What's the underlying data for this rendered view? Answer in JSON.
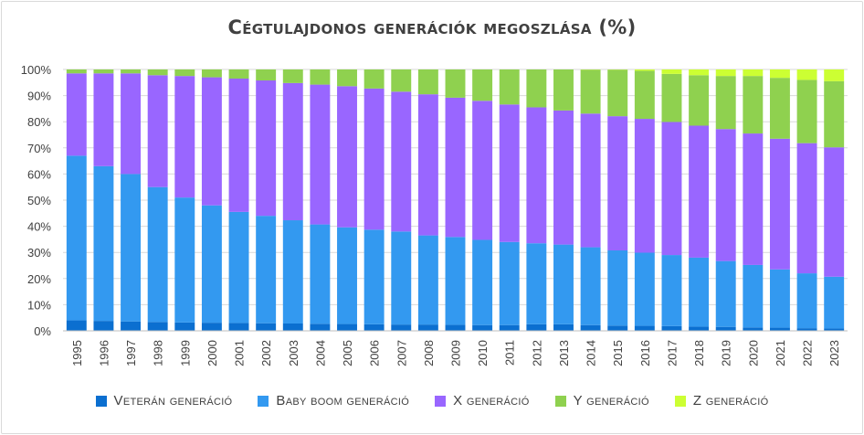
{
  "chart_data": {
    "type": "bar",
    "stacked": true,
    "title": "Cégtulajdonos generációk megoszlása (%)",
    "xlabel": "",
    "ylabel": "",
    "ylim": [
      0,
      100
    ],
    "y_ticks": [
      "0%",
      "10%",
      "20%",
      "30%",
      "40%",
      "50%",
      "60%",
      "70%",
      "80%",
      "90%",
      "100%"
    ],
    "grid": true,
    "legend_position": "bottom",
    "categories": [
      "1995",
      "1996",
      "1997",
      "1998",
      "1999",
      "2000",
      "2001",
      "2002",
      "2003",
      "2004",
      "2005",
      "2006",
      "2007",
      "2008",
      "2009",
      "2010",
      "2011",
      "2012",
      "2013",
      "2014",
      "2015",
      "2016",
      "2017",
      "2018",
      "2019",
      "2020",
      "2021",
      "2022",
      "2023"
    ],
    "series": [
      {
        "name": "Veterán generáció",
        "color": "#0b6fd0",
        "values": [
          4,
          3.8,
          3.6,
          3.4,
          3.2,
          3.1,
          3,
          2.9,
          2.8,
          2.7,
          2.6,
          2.5,
          2.4,
          2.4,
          2.3,
          2.2,
          2.2,
          2.5,
          2.5,
          2.2,
          2,
          1.9,
          1.8,
          1.6,
          1.5,
          1.3,
          1.2,
          1,
          0.9
        ]
      },
      {
        "name": "Baby boom generáció",
        "color": "#3399f0",
        "values": [
          63,
          59.2,
          56.4,
          51.6,
          47.8,
          44.9,
          42.5,
          41.1,
          39.5,
          38,
          37,
          36.2,
          35.6,
          34.1,
          33.6,
          32.6,
          31.8,
          31,
          30.5,
          29.8,
          28.8,
          28,
          27.2,
          26.4,
          25.2,
          23.9,
          22.3,
          21,
          19.8
        ]
      },
      {
        "name": "X generáció",
        "color": "#9966ff",
        "values": [
          31.5,
          35.5,
          38.5,
          42.8,
          46.5,
          49,
          51,
          51.8,
          52.5,
          53.5,
          54,
          54,
          53.5,
          54,
          53.3,
          53.2,
          52.6,
          52,
          51.3,
          51.2,
          51.4,
          51.2,
          50.9,
          50.5,
          50.5,
          50.3,
          50,
          49.8,
          49.5
        ]
      },
      {
        "name": "Y generáció",
        "color": "#8fd14f",
        "values": [
          1.5,
          1.5,
          1.5,
          2.2,
          2.5,
          3,
          3.5,
          4.2,
          5.2,
          5.8,
          6.4,
          7.3,
          8.5,
          9.5,
          10.8,
          12,
          13.4,
          14.5,
          15.7,
          16.8,
          17.8,
          18.4,
          18.4,
          19.3,
          20.3,
          22,
          23.3,
          24.2,
          25.3
        ]
      },
      {
        "name": "Z generáció",
        "color": "#ccff33",
        "values": [
          0,
          0,
          0,
          0,
          0,
          0,
          0,
          0,
          0,
          0,
          0,
          0,
          0,
          0,
          0,
          0,
          0,
          0,
          0,
          0.1,
          0.1,
          0.5,
          1.7,
          2.2,
          2.5,
          2.5,
          3.2,
          4,
          4.5
        ]
      }
    ]
  }
}
